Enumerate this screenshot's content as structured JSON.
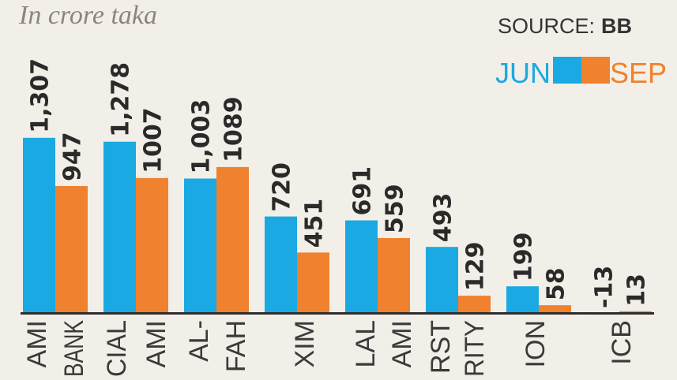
{
  "chart_data": {
    "type": "bar",
    "subtitle": "In crore taka",
    "source_label": "SOURCE:",
    "source_value": "BB",
    "categories": [
      [
        "AMI",
        "BANK"
      ],
      [
        "CIAL",
        "AMI"
      ],
      [
        "AL-",
        "FAH"
      ],
      [
        "XIM"
      ],
      [
        "LAL",
        "AMI"
      ],
      [
        "RST",
        "RITY"
      ],
      [
        "ION"
      ],
      [
        "ICB"
      ]
    ],
    "series": [
      {
        "name": "JUN",
        "color": "#1aa9e2",
        "values": [
          1307,
          1278,
          1003,
          720,
          691,
          493,
          199,
          -13
        ],
        "labels": [
          "1,307",
          "1,278",
          "1,003",
          "720",
          "691",
          "493",
          "199",
          "-13"
        ]
      },
      {
        "name": "SEP",
        "color": "#f0812e",
        "values": [
          947,
          1007,
          1089,
          451,
          559,
          129,
          58,
          13
        ],
        "labels": [
          "947",
          "1007",
          "1089",
          "451",
          "559",
          "129",
          "58",
          "13"
        ]
      }
    ],
    "ylim": [
      -30,
      1400
    ],
    "grid": false,
    "legend_placement": "top-right"
  }
}
